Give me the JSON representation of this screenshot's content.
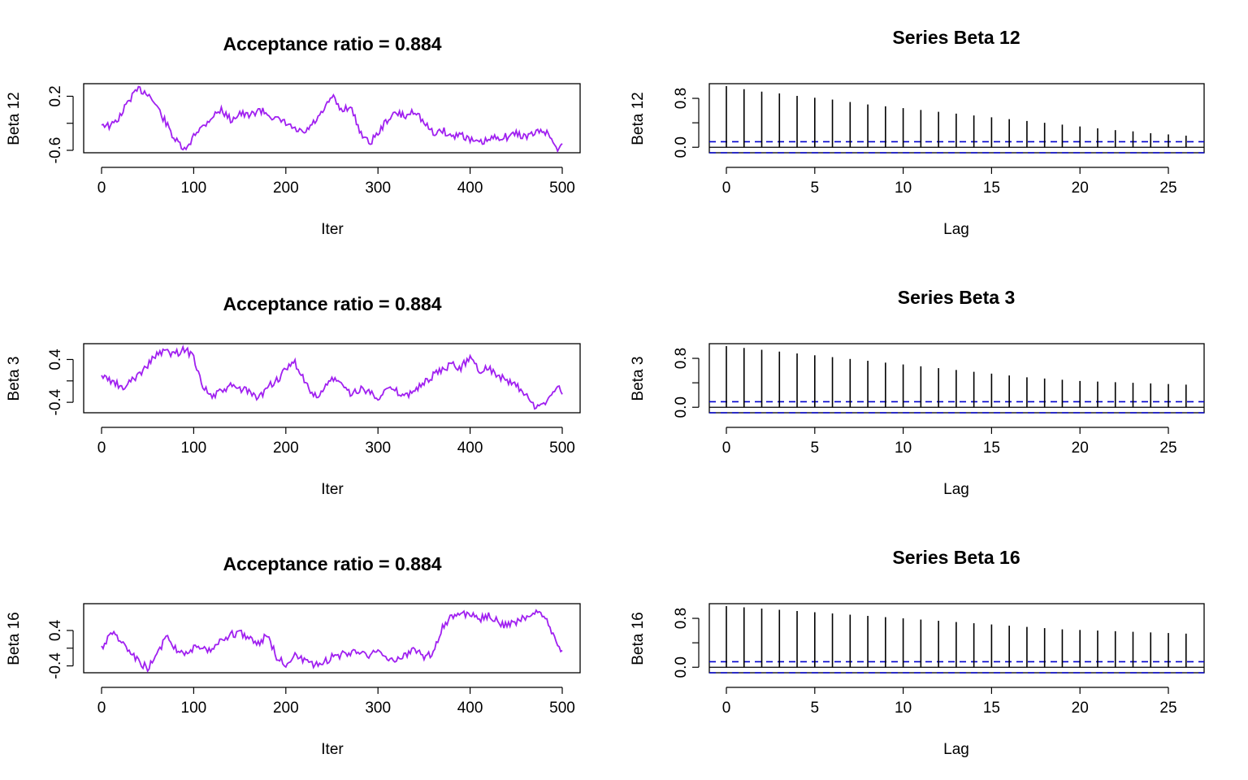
{
  "colors": {
    "trace": "#a020f0",
    "acf_bar": "#000000",
    "ci_line": "#0000cd",
    "frame": "#000000"
  },
  "chart_data": [
    {
      "type": "line",
      "title": "Acceptance ratio = 0.884",
      "xlabel": "Iter",
      "ylabel": "Beta 12",
      "xlim": [
        0,
        500
      ],
      "xticks": [
        "0",
        "100",
        "200",
        "300",
        "400",
        "500"
      ],
      "ylim": [
        -0.6,
        0.35
      ],
      "yticks": [
        "-0.6",
        "0.2"
      ],
      "x": [
        0,
        10,
        20,
        30,
        40,
        50,
        60,
        70,
        80,
        90,
        95,
        100,
        110,
        120,
        130,
        140,
        150,
        160,
        170,
        180,
        190,
        200,
        210,
        220,
        230,
        240,
        250,
        260,
        270,
        280,
        290,
        300,
        310,
        320,
        330,
        340,
        350,
        360,
        370,
        380,
        390,
        400,
        410,
        420,
        430,
        440,
        450,
        460,
        470,
        480,
        490,
        495,
        500
      ],
      "y": [
        -0.2,
        -0.25,
        -0.1,
        0.15,
        0.3,
        0.25,
        0.05,
        -0.2,
        -0.45,
        -0.6,
        -0.55,
        -0.35,
        -0.25,
        -0.1,
        0.0,
        -0.15,
        -0.05,
        -0.1,
        0.0,
        -0.05,
        -0.15,
        -0.2,
        -0.3,
        -0.35,
        -0.2,
        -0.05,
        0.2,
        0.0,
        0.05,
        -0.3,
        -0.5,
        -0.35,
        -0.15,
        -0.05,
        -0.1,
        0.0,
        -0.2,
        -0.35,
        -0.3,
        -0.4,
        -0.35,
        -0.45,
        -0.5,
        -0.45,
        -0.4,
        -0.4,
        -0.35,
        -0.4,
        -0.35,
        -0.3,
        -0.45,
        -0.6,
        -0.5
      ]
    },
    {
      "type": "bar",
      "title": "Series Beta 12",
      "xlabel": "Lag",
      "ylabel": "Beta 12",
      "xlim": [
        -1,
        27
      ],
      "xticks": [
        "0",
        "5",
        "10",
        "15",
        "20",
        "25"
      ],
      "ylim": [
        -0.05,
        1.0
      ],
      "yticks": [
        "0.0",
        "0.8"
      ],
      "lags": [
        0,
        1,
        2,
        3,
        4,
        5,
        6,
        7,
        8,
        9,
        10,
        11,
        12,
        13,
        14,
        15,
        16,
        17,
        18,
        19,
        20,
        21,
        22,
        23,
        24,
        25,
        26
      ],
      "values": [
        1.0,
        0.95,
        0.91,
        0.88,
        0.84,
        0.81,
        0.78,
        0.74,
        0.7,
        0.67,
        0.64,
        0.61,
        0.58,
        0.55,
        0.52,
        0.49,
        0.46,
        0.43,
        0.4,
        0.37,
        0.34,
        0.31,
        0.28,
        0.26,
        0.23,
        0.21,
        0.19
      ],
      "ci": 0.09
    },
    {
      "type": "line",
      "title": "Acceptance ratio = 0.884",
      "xlabel": "Iter",
      "ylabel": "Beta 3",
      "xlim": [
        0,
        500
      ],
      "xticks": [
        "0",
        "100",
        "200",
        "300",
        "400",
        "500"
      ],
      "ylim": [
        -0.55,
        0.65
      ],
      "yticks": [
        "-0.4",
        "0.4"
      ],
      "x": [
        0,
        10,
        20,
        25,
        30,
        40,
        50,
        60,
        70,
        80,
        90,
        100,
        110,
        120,
        130,
        140,
        150,
        160,
        170,
        180,
        190,
        200,
        210,
        220,
        230,
        240,
        250,
        260,
        270,
        280,
        290,
        300,
        310,
        320,
        330,
        340,
        350,
        360,
        370,
        380,
        390,
        400,
        410,
        420,
        430,
        440,
        450,
        460,
        470,
        480,
        490,
        495,
        500
      ],
      "y": [
        0.1,
        0.0,
        -0.1,
        -0.2,
        0.0,
        0.1,
        0.3,
        0.5,
        0.55,
        0.5,
        0.6,
        0.45,
        -0.1,
        -0.3,
        -0.2,
        -0.1,
        -0.15,
        -0.2,
        -0.35,
        -0.1,
        0.0,
        0.2,
        0.35,
        0.0,
        -0.3,
        -0.2,
        0.05,
        -0.05,
        -0.25,
        -0.15,
        -0.2,
        -0.3,
        -0.15,
        -0.2,
        -0.3,
        -0.15,
        -0.05,
        0.1,
        0.2,
        0.3,
        0.25,
        0.45,
        0.2,
        0.25,
        0.1,
        0.0,
        -0.1,
        -0.25,
        -0.5,
        -0.45,
        -0.2,
        -0.05,
        -0.25
      ]
    },
    {
      "type": "bar",
      "title": "Series Beta 3",
      "xlabel": "Lag",
      "ylabel": "Beta 3",
      "xlim": [
        -1,
        27
      ],
      "xticks": [
        "0",
        "5",
        "10",
        "15",
        "20",
        "25"
      ],
      "ylim": [
        -0.05,
        1.0
      ],
      "yticks": [
        "0.0",
        "0.8"
      ],
      "lags": [
        0,
        1,
        2,
        3,
        4,
        5,
        6,
        7,
        8,
        9,
        10,
        11,
        12,
        13,
        14,
        15,
        16,
        17,
        18,
        19,
        20,
        21,
        22,
        23,
        24,
        25,
        26
      ],
      "values": [
        1.0,
        0.97,
        0.94,
        0.91,
        0.88,
        0.85,
        0.82,
        0.79,
        0.76,
        0.73,
        0.7,
        0.67,
        0.64,
        0.61,
        0.58,
        0.55,
        0.52,
        0.49,
        0.47,
        0.45,
        0.43,
        0.42,
        0.41,
        0.4,
        0.39,
        0.38,
        0.37
      ],
      "ci": 0.09
    },
    {
      "type": "line",
      "title": "Acceptance ratio = 0.884",
      "xlabel": "Iter",
      "ylabel": "Beta 16",
      "xlim": [
        0,
        500
      ],
      "xticks": [
        "0",
        "100",
        "200",
        "300",
        "400",
        "500"
      ],
      "ylim": [
        -0.5,
        0.95
      ],
      "yticks": [
        "-0.4",
        "0.4"
      ],
      "x": [
        0,
        10,
        20,
        30,
        40,
        50,
        60,
        70,
        80,
        90,
        100,
        110,
        120,
        130,
        140,
        150,
        160,
        170,
        180,
        190,
        200,
        210,
        220,
        230,
        240,
        250,
        260,
        270,
        280,
        290,
        300,
        310,
        320,
        330,
        340,
        350,
        360,
        370,
        380,
        390,
        400,
        410,
        420,
        430,
        440,
        450,
        460,
        470,
        480,
        490,
        495,
        500
      ],
      "y": [
        0.0,
        0.35,
        0.2,
        -0.1,
        -0.3,
        -0.45,
        -0.2,
        0.3,
        0.0,
        -0.1,
        0.0,
        -0.05,
        0.0,
        0.2,
        0.3,
        0.35,
        0.25,
        0.1,
        0.3,
        -0.2,
        -0.35,
        -0.15,
        -0.3,
        -0.4,
        -0.35,
        -0.2,
        -0.15,
        -0.1,
        -0.05,
        -0.15,
        -0.1,
        -0.2,
        -0.3,
        -0.15,
        0.0,
        -0.2,
        -0.1,
        0.5,
        0.7,
        0.75,
        0.8,
        0.65,
        0.75,
        0.6,
        0.5,
        0.6,
        0.7,
        0.8,
        0.75,
        0.3,
        0.0,
        -0.05
      ]
    },
    {
      "type": "bar",
      "title": "Series Beta 16",
      "xlabel": "Lag",
      "ylabel": "Beta 16",
      "xlim": [
        -1,
        27
      ],
      "xticks": [
        "0",
        "5",
        "10",
        "15",
        "20",
        "25"
      ],
      "ylim": [
        -0.05,
        1.0
      ],
      "yticks": [
        "0.0",
        "0.8"
      ],
      "lags": [
        0,
        1,
        2,
        3,
        4,
        5,
        6,
        7,
        8,
        9,
        10,
        11,
        12,
        13,
        14,
        15,
        16,
        17,
        18,
        19,
        20,
        21,
        22,
        23,
        24,
        25,
        26
      ],
      "values": [
        1.0,
        0.98,
        0.96,
        0.94,
        0.92,
        0.9,
        0.88,
        0.86,
        0.84,
        0.82,
        0.8,
        0.78,
        0.76,
        0.74,
        0.72,
        0.7,
        0.68,
        0.66,
        0.64,
        0.62,
        0.61,
        0.6,
        0.59,
        0.58,
        0.57,
        0.56,
        0.55
      ],
      "ci": 0.09
    }
  ]
}
